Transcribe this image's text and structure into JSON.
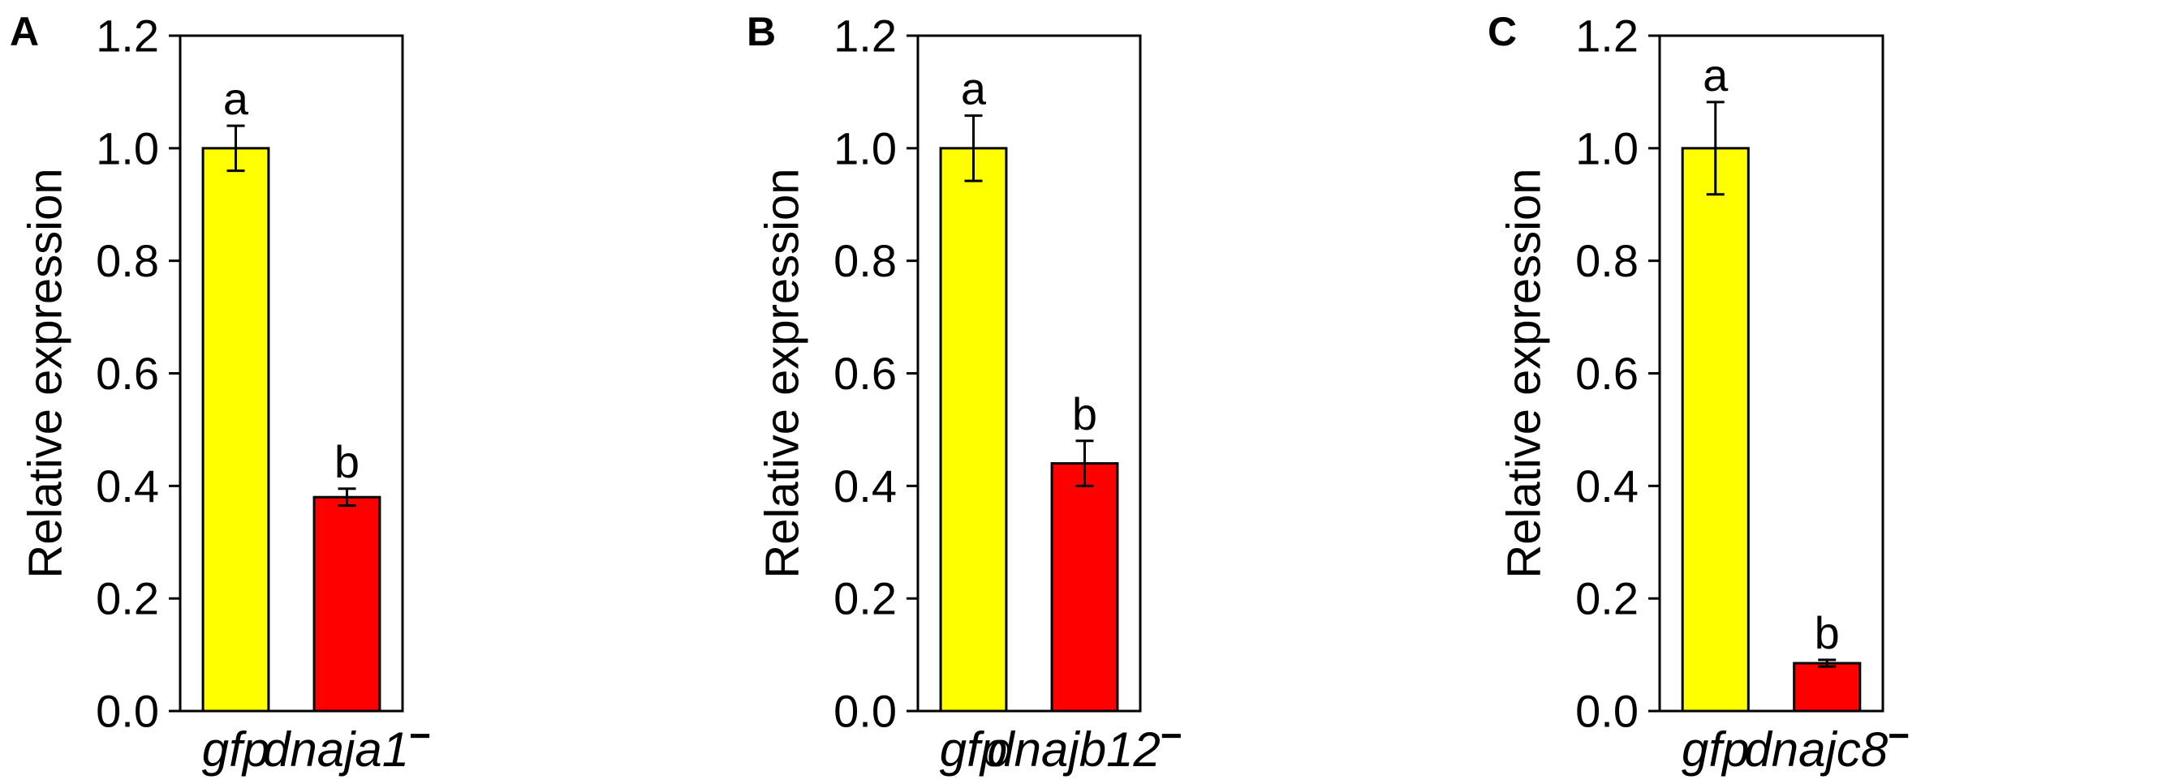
{
  "panels": [
    {
      "letter": "A"
    },
    {
      "letter": "B"
    },
    {
      "letter": "C"
    }
  ],
  "chart_data": [
    {
      "type": "bar",
      "categories": [
        "gfp",
        "dnaja1"
      ],
      "category_superscripts": [
        "",
        "−"
      ],
      "values": [
        1.0,
        0.38
      ],
      "error": [
        0.04,
        0.015
      ],
      "significance": [
        "a",
        "b"
      ],
      "colors": [
        "#FFFF00",
        "#FF0000"
      ],
      "ylabel": "Relative expression",
      "ylim": [
        0,
        1.2
      ],
      "yticks": [
        "0.0",
        "0.2",
        "0.4",
        "0.6",
        "0.8",
        "1.0",
        "1.2"
      ],
      "grid": false
    },
    {
      "type": "bar",
      "categories": [
        "gfp",
        "dnajb12"
      ],
      "category_superscripts": [
        "",
        "−"
      ],
      "values": [
        1.0,
        0.44
      ],
      "error": [
        0.058,
        0.04
      ],
      "significance": [
        "a",
        "b"
      ],
      "colors": [
        "#FFFF00",
        "#FF0000"
      ],
      "ylabel": "Relative expression",
      "ylim": [
        0,
        1.2
      ],
      "yticks": [
        "0.0",
        "0.2",
        "0.4",
        "0.6",
        "0.8",
        "1.0",
        "1.2"
      ],
      "grid": false
    },
    {
      "type": "bar",
      "categories": [
        "gfp",
        "dnajc8"
      ],
      "category_superscripts": [
        "",
        "−"
      ],
      "values": [
        1.0,
        0.085
      ],
      "error": [
        0.082,
        0.006
      ],
      "significance": [
        "a",
        "b"
      ],
      "colors": [
        "#FFFF00",
        "#FF0000"
      ],
      "ylabel": "Relative expression",
      "ylim": [
        0,
        1.2
      ],
      "yticks": [
        "0.0",
        "0.2",
        "0.4",
        "0.6",
        "0.8",
        "1.0",
        "1.2"
      ],
      "grid": false
    }
  ]
}
